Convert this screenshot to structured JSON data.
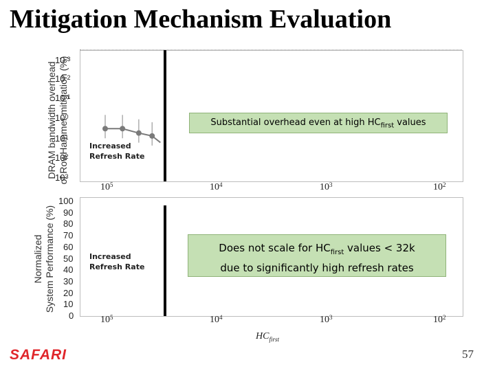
{
  "slide": {
    "title": "Mitigation Mechanism Evaluation",
    "page_number": "57",
    "logo": "SAFARI"
  },
  "top_chart": {
    "ylabel_line1": "DRAM bandwidth overhead",
    "ylabel_line2": "of RowHammer mitigation (%)",
    "y_ticks": [
      {
        "base": "10",
        "exp": "-3"
      },
      {
        "base": "10",
        "exp": "-2"
      },
      {
        "base": "10",
        "exp": "-1"
      },
      {
        "base": "10",
        "exp": "0"
      },
      {
        "base": "10",
        "exp": "1"
      },
      {
        "base": "10",
        "exp": "2"
      },
      {
        "base": "10",
        "exp": "3"
      }
    ],
    "x_ticks": [
      {
        "base": "10",
        "exp": "5"
      },
      {
        "base": "10",
        "exp": "4"
      },
      {
        "base": "10",
        "exp": "3"
      },
      {
        "base": "10",
        "exp": "2"
      }
    ],
    "annotation_line1": "Increased",
    "annotation_line2": "Refresh Rate",
    "callout_pre": "Substantial overhead even at high HC",
    "callout_sub": "first",
    "callout_post": " values"
  },
  "bottom_chart": {
    "ylabel_line1": "Normalized",
    "ylabel_line2": "System Performance (%)",
    "y_ticks": [
      "100",
      "90",
      "80",
      "70",
      "60",
      "50",
      "40",
      "30",
      "20",
      "10",
      "0"
    ],
    "x_ticks": [
      {
        "base": "10",
        "exp": "5"
      },
      {
        "base": "10",
        "exp": "4"
      },
      {
        "base": "10",
        "exp": "3"
      },
      {
        "base": "10",
        "exp": "2"
      }
    ],
    "annotation_line1": "Increased",
    "annotation_line2": "Refresh Rate",
    "callout_line1_pre": "Does not scale for HC",
    "callout_line1_sub": "first",
    "callout_line1_post": " values < 32k",
    "callout_line2": "due to significantly high refresh rates"
  },
  "x_axis_label": {
    "base": "HC",
    "sub": "first"
  },
  "chart_data": {
    "type": "line",
    "title": "",
    "xlabel": "HCfirst",
    "ylabel": "DRAM bandwidth overhead of RowHammer mitigation (%)",
    "x_scale": "log (reversed)",
    "y_scale": "log (reversed)",
    "xlim": [
      100000,
      100
    ],
    "ylim": [
      0.001,
      1000
    ],
    "series": [
      {
        "x": [
          100000,
          70000,
          50000,
          38000,
          32000
        ],
        "y": [
          3,
          3,
          5,
          7,
          15
        ]
      }
    ],
    "threshold_line_x": 32000,
    "colors": {
      "series": "#7a7a7a",
      "threshold": "#000000",
      "callout": "#c5e0b4",
      "logo": "#e0262b"
    }
  }
}
